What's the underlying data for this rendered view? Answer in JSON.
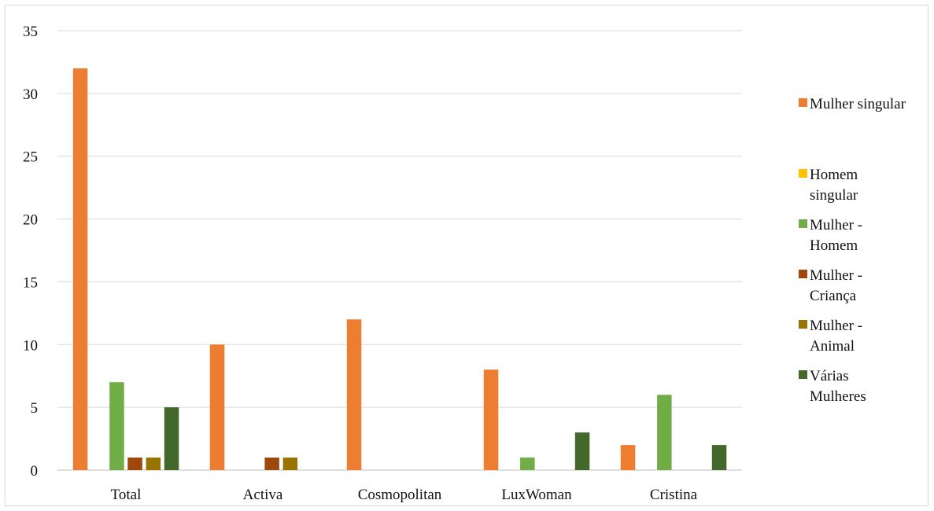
{
  "chart_data": {
    "type": "bar",
    "title": "",
    "xlabel": "",
    "ylabel": "",
    "ylim": [
      0,
      35
    ],
    "yticks": [
      0,
      5,
      10,
      15,
      20,
      25,
      30,
      35
    ],
    "grid": true,
    "legend_position": "right",
    "categories": [
      "Total",
      "Activa",
      "Cosmopolitan",
      "LuxWoman",
      "Cristina"
    ],
    "series": [
      {
        "name": "Mulher singular",
        "legend_lines": [
          "Mulher singular"
        ],
        "color": "#ed7d31",
        "values": [
          32,
          10,
          12,
          8,
          2
        ]
      },
      {
        "name": "Homem singular",
        "legend_lines": [
          "Homem",
          "singular"
        ],
        "color": "#ffc000",
        "values": [
          0,
          0,
          0,
          0,
          0
        ]
      },
      {
        "name": "Mulher - Homem",
        "legend_lines": [
          "Mulher -",
          "Homem"
        ],
        "color": "#70ad47",
        "values": [
          7,
          0,
          0,
          1,
          6
        ]
      },
      {
        "name": "Mulher - Criança",
        "legend_lines": [
          "Mulher -",
          "Criança"
        ],
        "color": "#9e480e",
        "values": [
          1,
          1,
          0,
          0,
          0
        ]
      },
      {
        "name": "Mulher - Animal",
        "legend_lines": [
          "Mulher -",
          "Animal"
        ],
        "color": "#997300",
        "values": [
          1,
          1,
          0,
          0,
          0
        ]
      },
      {
        "name": "Várias Mulheres",
        "legend_lines": [
          "Várias",
          "Mulheres"
        ],
        "color": "#43682b",
        "values": [
          5,
          0,
          0,
          3,
          2
        ]
      }
    ]
  }
}
